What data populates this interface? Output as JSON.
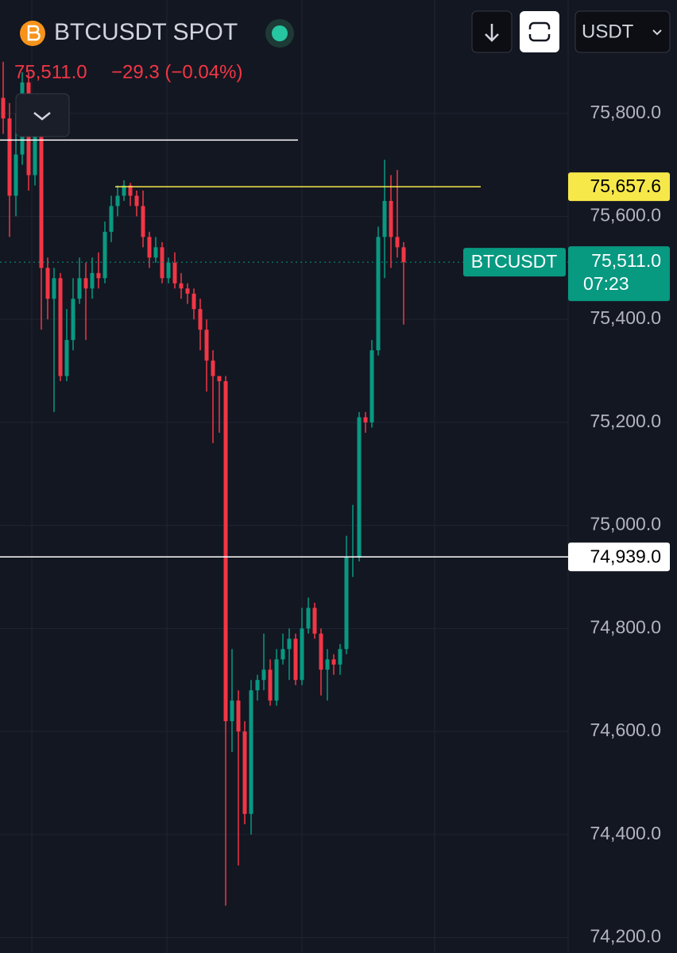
{
  "header": {
    "title": "BTCUSDT SPOT",
    "price": "75,511.0",
    "change": "−29.3 (−0.04%)",
    "currency": "USDT"
  },
  "chart_data": {
    "type": "candlestick",
    "open": [
      75830,
      75790,
      75640,
      75720,
      75860,
      75680,
      75760,
      75500,
      75440,
      75480,
      75290,
      75360,
      75440,
      75480,
      75460,
      75490,
      75480,
      75570,
      75620,
      75640,
      75660,
      75640,
      75620,
      75560,
      75520,
      75540,
      75480,
      75510,
      75470,
      75460,
      75450,
      75420,
      75380,
      75320,
      75290,
      75280,
      74620,
      74660,
      74600,
      74440,
      74680,
      74700,
      74720,
      74660,
      74740,
      74760,
      74780,
      74700,
      74800,
      74840,
      74790,
      74720,
      74740,
      74730,
      74760,
      74940,
      74940,
      75210,
      75200,
      75340,
      75560,
      75630,
      75560,
      75540
    ],
    "high": [
      75900,
      75820,
      75800,
      75880,
      75880,
      75790,
      75770,
      75520,
      75500,
      75490,
      75420,
      75480,
      75520,
      75510,
      75520,
      75530,
      75590,
      75640,
      75660,
      75670,
      75665,
      75650,
      75650,
      75570,
      75560,
      75550,
      75520,
      75530,
      75490,
      75470,
      75460,
      75440,
      75400,
      75340,
      75290,
      75290,
      74760,
      74680,
      74620,
      74700,
      74710,
      74790,
      74740,
      74760,
      74790,
      74800,
      74790,
      74840,
      74860,
      74850,
      74800,
      74760,
      74750,
      74770,
      74980,
      75040,
      75220,
      75220,
      75360,
      75580,
      75710,
      75680,
      75690,
      75550
    ],
    "low": [
      75760,
      75560,
      75600,
      75700,
      75650,
      75660,
      75380,
      75400,
      75220,
      75280,
      75280,
      75340,
      75430,
      75360,
      75440,
      75460,
      75470,
      75550,
      75600,
      75630,
      75620,
      75600,
      75540,
      75500,
      75510,
      75470,
      75470,
      75460,
      75440,
      75430,
      75400,
      75340,
      75260,
      75160,
      75180,
      74262,
      74560,
      74340,
      74420,
      74400,
      74660,
      74680,
      74650,
      74650,
      74730,
      74700,
      74690,
      74690,
      74790,
      74780,
      74670,
      74660,
      74710,
      74710,
      74750,
      74900,
      74930,
      75180,
      75190,
      75330,
      75480,
      75500,
      75520,
      75390
    ],
    "close": [
      75790,
      75640,
      75720,
      75860,
      75680,
      75760,
      75500,
      75440,
      75480,
      75290,
      75360,
      75440,
      75480,
      75460,
      75490,
      75480,
      75570,
      75620,
      75640,
      75660,
      75640,
      75620,
      75560,
      75520,
      75540,
      75480,
      75510,
      75470,
      75460,
      75450,
      75420,
      75380,
      75320,
      75290,
      75280,
      74620,
      74660,
      74600,
      74440,
      74680,
      74700,
      74720,
      74660,
      74740,
      74760,
      74780,
      74700,
      74800,
      74840,
      74790,
      74720,
      74740,
      74730,
      74760,
      74940,
      74940,
      75210,
      75200,
      75340,
      75560,
      75630,
      75560,
      75540,
      75511
    ],
    "up_color": "#089981",
    "down_color": "#f23645",
    "ylim": [
      74170,
      76020
    ],
    "yticks": [
      {
        "value": 74200,
        "label": "74,200.0"
      },
      {
        "value": 74400,
        "label": "74,400.0"
      },
      {
        "value": 74600,
        "label": "74,600.0"
      },
      {
        "value": 74800,
        "label": "74,800.0"
      },
      {
        "value": 75000,
        "label": "75,000.0"
      },
      {
        "value": 75200,
        "label": "75,200.0"
      },
      {
        "value": 75400,
        "label": "75,400.0"
      },
      {
        "value": 75600,
        "label": "75,600.0"
      },
      {
        "value": 75800,
        "label": "75,800.0"
      }
    ],
    "grid": true,
    "levels": [
      {
        "value": 75657.6,
        "label": "75,657.6",
        "color": "#f7e84a"
      },
      {
        "value": 74939,
        "label": "74,939.0",
        "color": "#ffffff"
      },
      {
        "value": 75748,
        "color": "#ffffff"
      }
    ],
    "last_price": {
      "value": 75511,
      "label": "75,511.0",
      "symbol": "BTCUSDT",
      "countdown": "07:23",
      "color": "#089981"
    }
  }
}
